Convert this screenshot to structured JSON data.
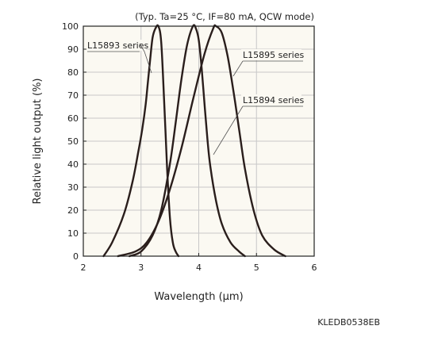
{
  "chart_data": {
    "type": "line",
    "condition_text": "(Typ. Ta=25 °C, IF=80 mA, QCW mode)",
    "xlabel": "Wavelength (μm)",
    "ylabel": "Relative light output (%)",
    "figure_code": "KLEDB0538EB",
    "xlim": [
      2,
      6
    ],
    "ylim": [
      0,
      100
    ],
    "x_ticks": [
      "2",
      "3",
      "4",
      "5",
      "6"
    ],
    "y_ticks": [
      "0",
      "10",
      "20",
      "30",
      "40",
      "50",
      "60",
      "70",
      "80",
      "90",
      "100"
    ],
    "grid": "major, both axes",
    "colors": {
      "curve": "#2a1e1c",
      "grid": "#c8c8c8",
      "background": "#fbf9f2",
      "frame": "#222222"
    },
    "series": [
      {
        "name": "L15893 series",
        "x": [
          2.35,
          2.5,
          2.7,
          2.85,
          2.95,
          3.02,
          3.08,
          3.12,
          3.16,
          3.2,
          3.25,
          3.3,
          3.35,
          3.4,
          3.45,
          3.5,
          3.55,
          3.6,
          3.65
        ],
        "y": [
          0,
          6,
          18,
          32,
          45,
          55,
          66,
          76,
          86,
          95,
          99,
          100,
          93,
          68,
          39,
          17,
          6,
          2,
          0
        ]
      },
      {
        "name": "L15894 series",
        "x": [
          2.8,
          3.0,
          3.2,
          3.35,
          3.5,
          3.6,
          3.7,
          3.8,
          3.9,
          3.95,
          4.0,
          4.05,
          4.1,
          4.15,
          4.2,
          4.3,
          4.4,
          4.55,
          4.7,
          4.8
        ],
        "y": [
          0,
          2,
          9,
          20,
          40,
          58,
          77,
          92,
          100,
          99,
          94,
          82,
          66,
          51,
          39,
          24,
          14,
          6,
          2,
          0
        ]
      },
      {
        "name": "L15895 series",
        "x": [
          2.6,
          2.9,
          3.1,
          3.3,
          3.5,
          3.7,
          3.9,
          4.1,
          4.25,
          4.3,
          4.4,
          4.5,
          4.6,
          4.7,
          4.8,
          4.95,
          5.1,
          5.3,
          5.5
        ],
        "y": [
          0,
          2,
          6,
          15,
          29,
          47,
          68,
          88,
          99,
          100,
          97,
          87,
          72,
          55,
          38,
          20,
          9,
          3,
          0
        ]
      }
    ]
  }
}
